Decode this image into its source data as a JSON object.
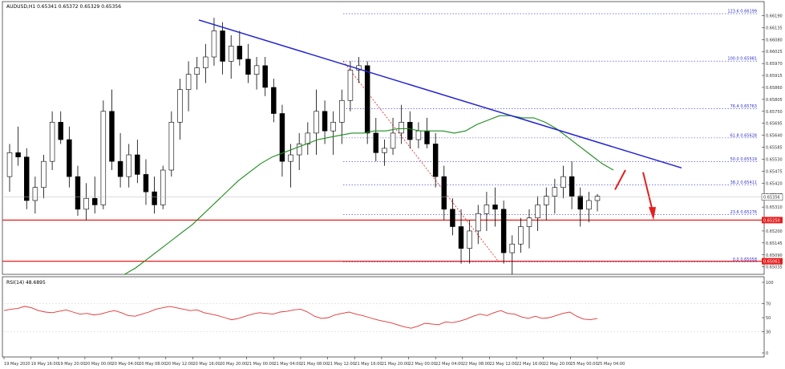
{
  "chart_data": {
    "type": "candlestick",
    "title": "AUDUSD,H1  0.65341 0.65372 0.65329 0.65356",
    "ylim": [
      0.65008,
      0.66225
    ],
    "price_ticks": [
      "0.66190",
      "0.66135",
      "0.66080",
      "0.66025",
      "0.65970",
      "0.65915",
      "0.65860",
      "0.65805",
      "0.65750",
      "0.65695",
      "0.65640",
      "0.65585",
      "0.65530",
      "0.65475",
      "0.65420",
      "0.65365",
      "0.65310",
      "0.65255",
      "0.65200",
      "0.65145",
      "0.65090",
      "0.65035"
    ],
    "current_price": {
      "label": "0.65356",
      "value": 0.65356
    },
    "time_labels": [
      "19 May 2020",
      "19 May 16:00",
      "19 May 20:00",
      "20 May 00:00",
      "20 May 04:00",
      "20 May 08:00",
      "20 May 12:00",
      "20 May 16:00",
      "20 May 20:00",
      "21 May 00:00",
      "21 May 04:00",
      "21 May 08:00",
      "21 May 12:00",
      "21 May 16:00",
      "21 May 20:00",
      "22 May 00:00",
      "22 May 04:00",
      "22 May 08:00",
      "22 May 12:00",
      "22 May 16:00",
      "22 May 20:00",
      "25 May 00:00",
      "25 May 04:00"
    ],
    "candles": [
      [
        0.6545,
        0.656,
        0.6538,
        0.6556
      ],
      [
        0.6556,
        0.6568,
        0.655,
        0.6554
      ],
      [
        0.6554,
        0.6558,
        0.653,
        0.6534
      ],
      [
        0.6534,
        0.6545,
        0.6528,
        0.654
      ],
      [
        0.654,
        0.6555,
        0.6535,
        0.6552
      ],
      [
        0.6552,
        0.6575,
        0.6548,
        0.657
      ],
      [
        0.657,
        0.6575,
        0.656,
        0.6562
      ],
      [
        0.6562,
        0.6568,
        0.654,
        0.6545
      ],
      [
        0.6545,
        0.655,
        0.6527,
        0.653
      ],
      [
        0.653,
        0.6542,
        0.6525,
        0.6535
      ],
      [
        0.6535,
        0.6545,
        0.6528,
        0.6532
      ],
      [
        0.6532,
        0.658,
        0.653,
        0.6575
      ],
      [
        0.6575,
        0.6585,
        0.6548,
        0.6552
      ],
      [
        0.6552,
        0.6565,
        0.654,
        0.6545
      ],
      [
        0.6545,
        0.656,
        0.654,
        0.6555
      ],
      [
        0.6555,
        0.6562,
        0.6542,
        0.6546
      ],
      [
        0.6546,
        0.6553,
        0.6532,
        0.6538
      ],
      [
        0.6538,
        0.6545,
        0.6528,
        0.6532
      ],
      [
        0.6532,
        0.655,
        0.653,
        0.6548
      ],
      [
        0.6548,
        0.6575,
        0.6545,
        0.657
      ],
      [
        0.657,
        0.659,
        0.6562,
        0.6585
      ],
      [
        0.6585,
        0.6598,
        0.6575,
        0.6592
      ],
      [
        0.6592,
        0.66,
        0.6585,
        0.6595
      ],
      [
        0.6595,
        0.6606,
        0.6588,
        0.66
      ],
      [
        0.66,
        0.6618,
        0.6596,
        0.6612
      ],
      [
        0.6612,
        0.6616,
        0.6592,
        0.6598
      ],
      [
        0.6598,
        0.661,
        0.659,
        0.6605
      ],
      [
        0.6605,
        0.6612,
        0.6596,
        0.6599
      ],
      [
        0.6599,
        0.6606,
        0.6588,
        0.6592
      ],
      [
        0.6592,
        0.66,
        0.6585,
        0.6596
      ],
      [
        0.6596,
        0.66,
        0.6582,
        0.6586
      ],
      [
        0.6586,
        0.659,
        0.657,
        0.6574
      ],
      [
        0.6574,
        0.6578,
        0.6545,
        0.6552
      ],
      [
        0.6552,
        0.656,
        0.654,
        0.6555
      ],
      [
        0.6555,
        0.6565,
        0.6548,
        0.656
      ],
      [
        0.656,
        0.657,
        0.6555,
        0.6565
      ],
      [
        0.6565,
        0.6585,
        0.6555,
        0.6575
      ],
      [
        0.6575,
        0.658,
        0.656,
        0.6566
      ],
      [
        0.6566,
        0.6575,
        0.6555,
        0.657
      ],
      [
        0.657,
        0.6585,
        0.656,
        0.658
      ],
      [
        0.658,
        0.6598,
        0.6575,
        0.6594
      ],
      [
        0.6594,
        0.66,
        0.6588,
        0.6596
      ],
      [
        0.6596,
        0.6598,
        0.656,
        0.6565
      ],
      [
        0.6565,
        0.6572,
        0.6552,
        0.6556
      ],
      [
        0.6556,
        0.6562,
        0.655,
        0.6558
      ],
      [
        0.6558,
        0.6572,
        0.6555,
        0.6565
      ],
      [
        0.6565,
        0.6578,
        0.656,
        0.657
      ],
      [
        0.657,
        0.6575,
        0.6558,
        0.6562
      ],
      [
        0.6562,
        0.657,
        0.6558,
        0.6566
      ],
      [
        0.6566,
        0.6572,
        0.6558,
        0.656
      ],
      [
        0.656,
        0.6565,
        0.654,
        0.6545
      ],
      [
        0.6545,
        0.655,
        0.6525,
        0.653
      ],
      [
        0.653,
        0.6535,
        0.6518,
        0.6522
      ],
      [
        0.6522,
        0.653,
        0.6505,
        0.6512
      ],
      [
        0.6512,
        0.6525,
        0.6505,
        0.652
      ],
      [
        0.652,
        0.6532,
        0.6514,
        0.6528
      ],
      [
        0.6528,
        0.6538,
        0.652,
        0.6532
      ],
      [
        0.6532,
        0.654,
        0.6522,
        0.653
      ],
      [
        0.653,
        0.6534,
        0.6505,
        0.651
      ],
      [
        0.651,
        0.6518,
        0.65,
        0.6514
      ],
      [
        0.6514,
        0.6526,
        0.651,
        0.6522
      ],
      [
        0.6522,
        0.653,
        0.6512,
        0.6526
      ],
      [
        0.6526,
        0.6536,
        0.652,
        0.6532
      ],
      [
        0.6532,
        0.654,
        0.6525,
        0.6536
      ],
      [
        0.6536,
        0.6544,
        0.6528,
        0.654
      ],
      [
        0.654,
        0.655,
        0.6535,
        0.6545
      ],
      [
        0.6545,
        0.6552,
        0.653,
        0.6536
      ],
      [
        0.6536,
        0.654,
        0.6522,
        0.653
      ],
      [
        0.653,
        0.6538,
        0.6524,
        0.6534
      ],
      [
        0.6534,
        0.6537,
        0.6529,
        0.6536
      ]
    ],
    "ma": {
      "color": "#1c8c1c",
      "values": [
        0.65,
        0.6503,
        0.6507,
        0.6511,
        0.6515,
        0.6519,
        0.6523,
        0.6528,
        0.6533,
        0.6538,
        0.6543,
        0.6547,
        0.6551,
        0.6554,
        0.6556,
        0.6558,
        0.656,
        0.6562,
        0.6563,
        0.6564,
        0.6565,
        0.6565,
        0.6566,
        0.6566,
        0.6567,
        0.6567,
        0.6566,
        0.6566,
        0.6566,
        0.6565,
        0.6566,
        0.6569,
        0.6571,
        0.6573,
        0.6573,
        0.6572,
        0.6572,
        0.657,
        0.6567,
        0.6563,
        0.6559,
        0.6555,
        0.6551,
        0.6548
      ]
    },
    "trendline": {
      "color": "#2323d2",
      "from": [
        0.6617
      ],
      "to": [
        0.6549
      ]
    },
    "fib_levels": [
      {
        "label": "123.6 0.66199",
        "value": 0.66199
      },
      {
        "label": "100.0 0.65981",
        "value": 0.65981
      },
      {
        "label": "76.4 0.65763",
        "value": 0.65763
      },
      {
        "label": "61.8 0.65628",
        "value": 0.65628
      },
      {
        "label": "50.0 0.65519",
        "value": 0.65519
      },
      {
        "label": "38.2 0.65411",
        "value": 0.65411
      },
      {
        "label": "23.6 0.65276",
        "value": 0.65276
      },
      {
        "label": "0.0 0.65058",
        "value": 0.65058
      }
    ],
    "horizontal_lines": [
      {
        "label": "0.65250",
        "value": 0.6525,
        "color": "#e61e1e"
      },
      {
        "label": "0.65061",
        "value": 0.65061,
        "color": "#e61e1e"
      }
    ],
    "rsi": {
      "label": "RSI(14) 48.6895",
      "ylim": [
        0,
        100
      ],
      "ticks": [
        "100",
        "70",
        "50",
        "30",
        "0"
      ],
      "color": "#e13232",
      "values": [
        60,
        62,
        63,
        66,
        64,
        60,
        58,
        57,
        59,
        61,
        58,
        55,
        56,
        54,
        55,
        58,
        60,
        57,
        53,
        52,
        55,
        58,
        62,
        64,
        66,
        64,
        62,
        60,
        61,
        57,
        55,
        53,
        50,
        47,
        49,
        52,
        55,
        57,
        56,
        55,
        58,
        59,
        61,
        62,
        58,
        52,
        49,
        50,
        54,
        56,
        58,
        55,
        53,
        50,
        47,
        45,
        43,
        40,
        37,
        35,
        38,
        42,
        41,
        40,
        44,
        43,
        45,
        48,
        52,
        55,
        53,
        57,
        60,
        56,
        55,
        51,
        49,
        52,
        49,
        50,
        53,
        56,
        58,
        52,
        48,
        47,
        49
      ]
    }
  },
  "arrows": {
    "color": "#e61e1e"
  }
}
